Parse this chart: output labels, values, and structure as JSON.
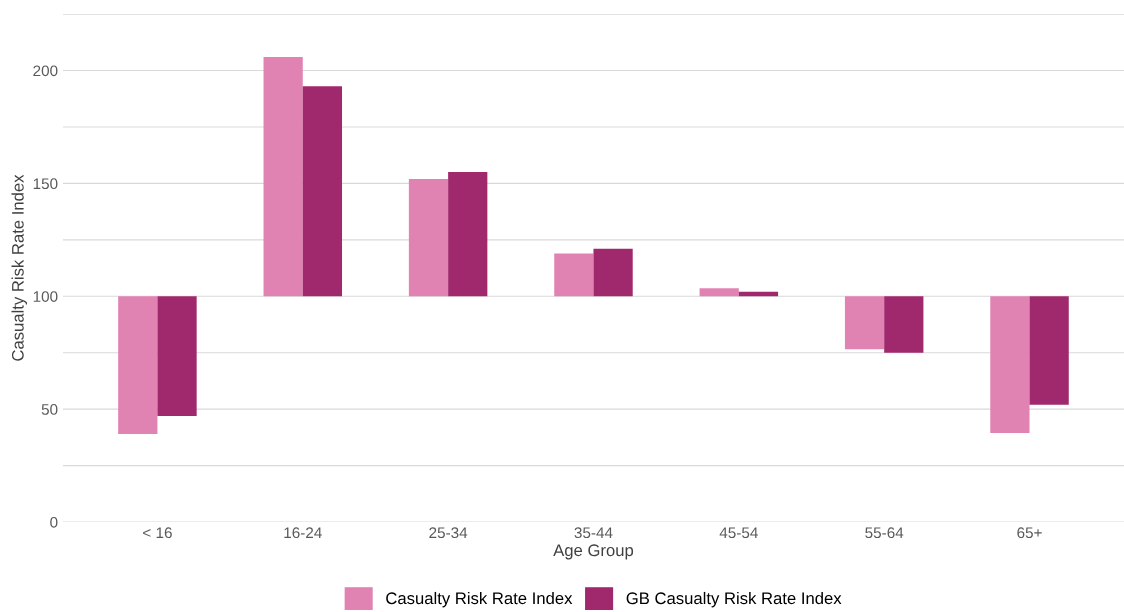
{
  "chart_data": {
    "type": "bar",
    "xlabel": "Age Group",
    "ylabel": "Casualty Risk Rate Index",
    "categories": [
      "< 16",
      "16-24",
      "25-34",
      "35-44",
      "45-54",
      "55-64",
      "65+"
    ],
    "series": [
      {
        "name": "Casualty Risk Rate Index",
        "color": "#e083b2",
        "base": [
          100,
          100,
          100,
          100,
          100,
          100,
          100
        ],
        "values": [
          -61,
          106,
          52,
          19,
          3.5,
          -23.5,
          -60.6
        ]
      },
      {
        "name": "GB Casualty Risk Rate Index",
        "color": "#a0296e",
        "base": [
          100,
          100,
          100,
          100,
          100,
          100,
          100
        ],
        "values": [
          -53,
          93,
          55,
          21,
          2,
          -25,
          -48
        ]
      }
    ],
    "ylim": [
      0,
      225
    ],
    "yticks": [
      0,
      {
        "value": 25,
        "label": null
      },
      50,
      {
        "value": 75,
        "label": null
      },
      100,
      {
        "value": 125,
        "label": null
      },
      150,
      {
        "value": 175,
        "label": null
      },
      200,
      {
        "value": 225,
        "label": null
      }
    ],
    "grid": "y",
    "legend": "bottom"
  }
}
